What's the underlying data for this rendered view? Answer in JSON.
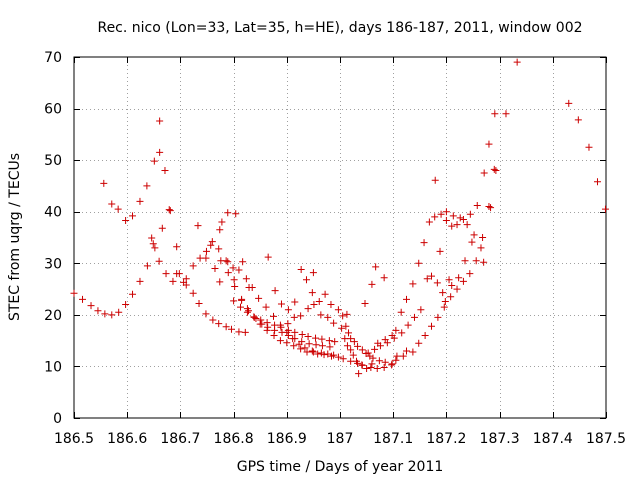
{
  "chart_data": {
    "type": "scatter",
    "title": "Rec. nico (Lon=33, Lat=35, h=HE), days 186-187, 2011, window 002",
    "xlabel": "GPS time / Days of year 2011",
    "ylabel": "STEC from uqrg / TECUs",
    "xlim": [
      186.5,
      187.5
    ],
    "ylim": [
      0,
      70
    ],
    "xticks": [
      186.5,
      186.6,
      186.7,
      186.8,
      186.9,
      187,
      187.1,
      187.2,
      187.3,
      187.4,
      187.5
    ],
    "xtick_labels": [
      "186.5",
      "186.6",
      "186.7",
      "186.8",
      "186.9",
      "187",
      "187.1",
      "187.2",
      "187.3",
      "187.4",
      "187.5"
    ],
    "yticks": [
      0,
      10,
      20,
      30,
      40,
      50,
      60,
      70
    ],
    "ytick_labels": [
      "0",
      "10",
      "20",
      "30",
      "40",
      "50",
      "60",
      "70"
    ],
    "grid": true,
    "marker": "+",
    "color": "#cc0000",
    "points": [
      [
        186.5,
        24.2
      ],
      [
        186.516,
        23.0
      ],
      [
        186.532,
        21.8
      ],
      [
        186.545,
        20.8
      ],
      [
        186.558,
        20.2
      ],
      [
        186.571,
        20.0
      ],
      [
        186.584,
        20.5
      ],
      [
        186.597,
        22.0
      ],
      [
        186.61,
        24.0
      ],
      [
        186.624,
        26.5
      ],
      [
        186.638,
        29.5
      ],
      [
        186.652,
        33.0
      ],
      [
        186.666,
        36.8
      ],
      [
        186.679,
        40.4
      ],
      [
        186.693,
        33.2
      ],
      [
        186.706,
        26.3
      ],
      [
        186.556,
        45.5
      ],
      [
        186.571,
        41.5
      ],
      [
        186.583,
        40.5
      ],
      [
        186.597,
        38.3
      ],
      [
        186.61,
        39.2
      ],
      [
        186.624,
        42.0
      ],
      [
        186.637,
        45.0
      ],
      [
        186.651,
        49.8
      ],
      [
        186.661,
        51.5
      ],
      [
        186.661,
        57.6
      ],
      [
        186.671,
        48.0
      ],
      [
        186.681,
        40.2
      ],
      [
        186.693,
        28.0
      ],
      [
        186.711,
        25.8
      ],
      [
        186.724,
        24.2
      ],
      [
        186.735,
        22.2
      ],
      [
        186.748,
        20.2
      ],
      [
        186.761,
        19.0
      ],
      [
        186.772,
        18.3
      ],
      [
        186.786,
        17.7
      ],
      [
        186.796,
        17.2
      ],
      [
        186.81,
        16.7
      ],
      [
        186.822,
        16.6
      ],
      [
        186.646,
        34.9
      ],
      [
        186.66,
        30.4
      ],
      [
        186.673,
        28.0
      ],
      [
        186.686,
        26.5
      ],
      [
        186.698,
        28.0
      ],
      [
        186.711,
        27.0
      ],
      [
        186.724,
        29.5
      ],
      [
        186.737,
        31.0
      ],
      [
        186.749,
        32.3
      ],
      [
        186.757,
        33.5
      ],
      [
        186.772,
        32.8
      ],
      [
        186.786,
        30.5
      ],
      [
        186.799,
        29.1
      ],
      [
        186.81,
        28.7
      ],
      [
        186.824,
        27.0
      ],
      [
        186.835,
        25.3
      ],
      [
        186.847,
        23.2
      ],
      [
        186.861,
        21.5
      ],
      [
        186.875,
        19.7
      ],
      [
        186.888,
        18.0
      ],
      [
        186.9,
        16.6
      ],
      [
        186.911,
        15.4
      ],
      [
        186.923,
        14.3
      ],
      [
        186.934,
        13.6
      ],
      [
        186.948,
        13.0
      ],
      [
        186.958,
        12.4
      ],
      [
        186.97,
        12.3
      ],
      [
        186.984,
        12.0
      ],
      [
        186.997,
        11.8
      ],
      [
        187.006,
        11.5
      ],
      [
        187.02,
        11.0
      ],
      [
        187.033,
        10.6
      ],
      [
        187.042,
        10.2
      ],
      [
        187.058,
        9.8
      ],
      [
        187.07,
        9.6
      ],
      [
        187.083,
        9.8
      ],
      [
        187.097,
        10.3
      ],
      [
        186.649,
        33.8
      ],
      [
        186.733,
        37.3
      ],
      [
        186.748,
        31.0
      ],
      [
        186.76,
        34.2
      ],
      [
        186.774,
        26.4
      ],
      [
        186.774,
        36.5
      ],
      [
        186.778,
        38.0
      ],
      [
        186.789,
        39.8
      ],
      [
        186.804,
        39.6
      ],
      [
        186.789,
        30.3
      ],
      [
        186.801,
        26.8
      ],
      [
        186.815,
        23.0
      ],
      [
        186.826,
        21.2
      ],
      [
        186.839,
        19.5
      ],
      [
        186.85,
        18.2
      ],
      [
        186.863,
        17.0
      ],
      [
        186.876,
        16.0
      ],
      [
        186.888,
        15.0
      ],
      [
        186.9,
        14.6
      ],
      [
        186.913,
        14.0
      ],
      [
        186.926,
        13.4
      ],
      [
        186.938,
        12.8
      ],
      [
        186.95,
        12.8
      ],
      [
        186.965,
        12.6
      ],
      [
        186.977,
        12.4
      ],
      [
        186.988,
        12.2
      ],
      [
        186.765,
        29.0
      ],
      [
        186.776,
        30.5
      ],
      [
        186.79,
        28.2
      ],
      [
        186.802,
        25.5
      ],
      [
        186.815,
        22.8
      ],
      [
        186.828,
        20.8
      ],
      [
        186.842,
        19.3
      ],
      [
        186.853,
        18.2
      ],
      [
        186.864,
        17.6
      ],
      [
        186.877,
        17.0
      ],
      [
        186.891,
        16.6
      ],
      [
        186.903,
        16.0
      ],
      [
        186.915,
        15.4
      ],
      [
        186.928,
        14.8
      ],
      [
        186.942,
        14.4
      ],
      [
        186.955,
        14.2
      ],
      [
        186.967,
        14.0
      ],
      [
        186.981,
        13.8
      ],
      [
        186.8,
        22.7
      ],
      [
        186.813,
        21.5
      ],
      [
        186.826,
        20.5
      ],
      [
        186.838,
        19.6
      ],
      [
        186.851,
        19.0
      ],
      [
        186.863,
        18.5
      ],
      [
        186.877,
        18.0
      ],
      [
        186.889,
        17.6
      ],
      [
        186.903,
        17.0
      ],
      [
        186.915,
        16.6
      ],
      [
        186.929,
        16.2
      ],
      [
        186.94,
        15.8
      ],
      [
        186.954,
        15.5
      ],
      [
        186.966,
        15.3
      ],
      [
        186.98,
        15.0
      ],
      [
        186.99,
        14.8
      ],
      [
        186.817,
        30.3
      ],
      [
        186.829,
        25.3
      ],
      [
        186.865,
        31.2
      ],
      [
        186.878,
        24.7
      ],
      [
        186.89,
        22.1
      ],
      [
        186.903,
        21.0
      ],
      [
        186.915,
        22.5
      ],
      [
        186.927,
        28.8
      ],
      [
        186.937,
        26.8
      ],
      [
        186.948,
        24.3
      ],
      [
        186.95,
        28.2
      ],
      [
        186.961,
        22.6
      ],
      [
        186.972,
        24.0
      ],
      [
        186.983,
        22.0
      ],
      [
        186.997,
        21.0
      ],
      [
        186.902,
        18.3
      ],
      [
        186.914,
        19.5
      ],
      [
        186.926,
        19.8
      ],
      [
        186.94,
        21.2
      ],
      [
        186.951,
        22.0
      ],
      [
        186.964,
        20.0
      ],
      [
        186.977,
        19.5
      ],
      [
        186.988,
        18.4
      ],
      [
        187.005,
        19.8
      ],
      [
        187.011,
        17.8
      ],
      [
        187.016,
        16.5
      ],
      [
        187.02,
        15.4
      ],
      [
        187.027,
        14.8
      ],
      [
        187.033,
        13.9
      ],
      [
        187.042,
        13.2
      ],
      [
        187.049,
        12.5
      ],
      [
        187.056,
        12.0
      ],
      [
        187.062,
        11.6
      ],
      [
        187.074,
        11.1
      ],
      [
        187.085,
        10.8
      ],
      [
        187.098,
        10.5
      ],
      [
        187.105,
        11.2
      ],
      [
        187.119,
        12.0
      ],
      [
        187.003,
        17.4
      ],
      [
        187.009,
        15.4
      ],
      [
        187.014,
        14.0
      ],
      [
        187.02,
        13.2
      ],
      [
        187.025,
        12.2
      ],
      [
        187.031,
        11.0
      ],
      [
        187.041,
        10.3
      ],
      [
        187.053,
        12.6
      ],
      [
        187.065,
        13.3
      ],
      [
        187.076,
        14.0
      ],
      [
        187.089,
        14.6
      ],
      [
        187.102,
        15.5
      ],
      [
        187.116,
        16.5
      ],
      [
        187.128,
        18.0
      ],
      [
        187.14,
        19.5
      ],
      [
        187.152,
        21.0
      ],
      [
        187.035,
        8.6
      ],
      [
        187.05,
        9.6
      ],
      [
        187.06,
        10.5
      ],
      [
        187.071,
        14.5
      ],
      [
        187.085,
        15.2
      ],
      [
        187.098,
        16.0
      ],
      [
        187.013,
        20.1
      ],
      [
        187.047,
        22.2
      ],
      [
        187.06,
        25.9
      ],
      [
        187.067,
        29.3
      ],
      [
        187.083,
        27.2
      ],
      [
        187.105,
        17.0
      ],
      [
        187.107,
        12.0
      ],
      [
        187.125,
        13.0
      ],
      [
        187.137,
        12.8
      ],
      [
        187.148,
        14.5
      ],
      [
        187.16,
        16.0
      ],
      [
        187.172,
        17.8
      ],
      [
        187.184,
        19.5
      ],
      [
        187.196,
        21.5
      ],
      [
        187.208,
        23.5
      ],
      [
        187.22,
        25.0
      ],
      [
        187.232,
        26.5
      ],
      [
        187.244,
        28.0
      ],
      [
        187.256,
        30.5
      ],
      [
        187.268,
        35.0
      ],
      [
        187.28,
        41.0
      ],
      [
        187.29,
        48.2
      ],
      [
        187.115,
        20.5
      ],
      [
        187.125,
        23.0
      ],
      [
        187.137,
        26.0
      ],
      [
        187.148,
        30.0
      ],
      [
        187.158,
        34.0
      ],
      [
        187.168,
        38.0
      ],
      [
        187.178,
        39.0
      ],
      [
        187.19,
        39.5
      ],
      [
        187.2,
        40.0
      ],
      [
        187.213,
        39.2
      ],
      [
        187.226,
        38.8
      ],
      [
        187.239,
        37.5
      ],
      [
        187.252,
        35.5
      ],
      [
        187.265,
        33.0
      ],
      [
        187.2,
        38.3
      ],
      [
        187.21,
        37.2
      ],
      [
        187.22,
        37.5
      ],
      [
        187.232,
        38.5
      ],
      [
        187.245,
        39.5
      ],
      [
        187.258,
        41.2
      ],
      [
        187.271,
        47.5
      ],
      [
        187.28,
        53.1
      ],
      [
        187.291,
        59.0
      ],
      [
        187.312,
        59.0
      ],
      [
        187.333,
        69.0
      ],
      [
        187.179,
        46.1
      ],
      [
        187.188,
        32.3
      ],
      [
        187.198,
        22.6
      ],
      [
        187.21,
        25.7
      ],
      [
        187.223,
        27.2
      ],
      [
        187.235,
        30.5
      ],
      [
        187.248,
        34.1
      ],
      [
        187.27,
        30.2
      ],
      [
        187.283,
        40.8
      ],
      [
        187.293,
        48.0
      ],
      [
        187.164,
        27.0
      ],
      [
        187.172,
        27.5
      ],
      [
        187.183,
        26.2
      ],
      [
        187.193,
        24.3
      ],
      [
        187.205,
        26.8
      ],
      [
        187.43,
        61.0
      ],
      [
        187.448,
        57.8
      ],
      [
        187.468,
        52.5
      ],
      [
        187.484,
        45.8
      ],
      [
        187.499,
        40.5
      ]
    ]
  }
}
